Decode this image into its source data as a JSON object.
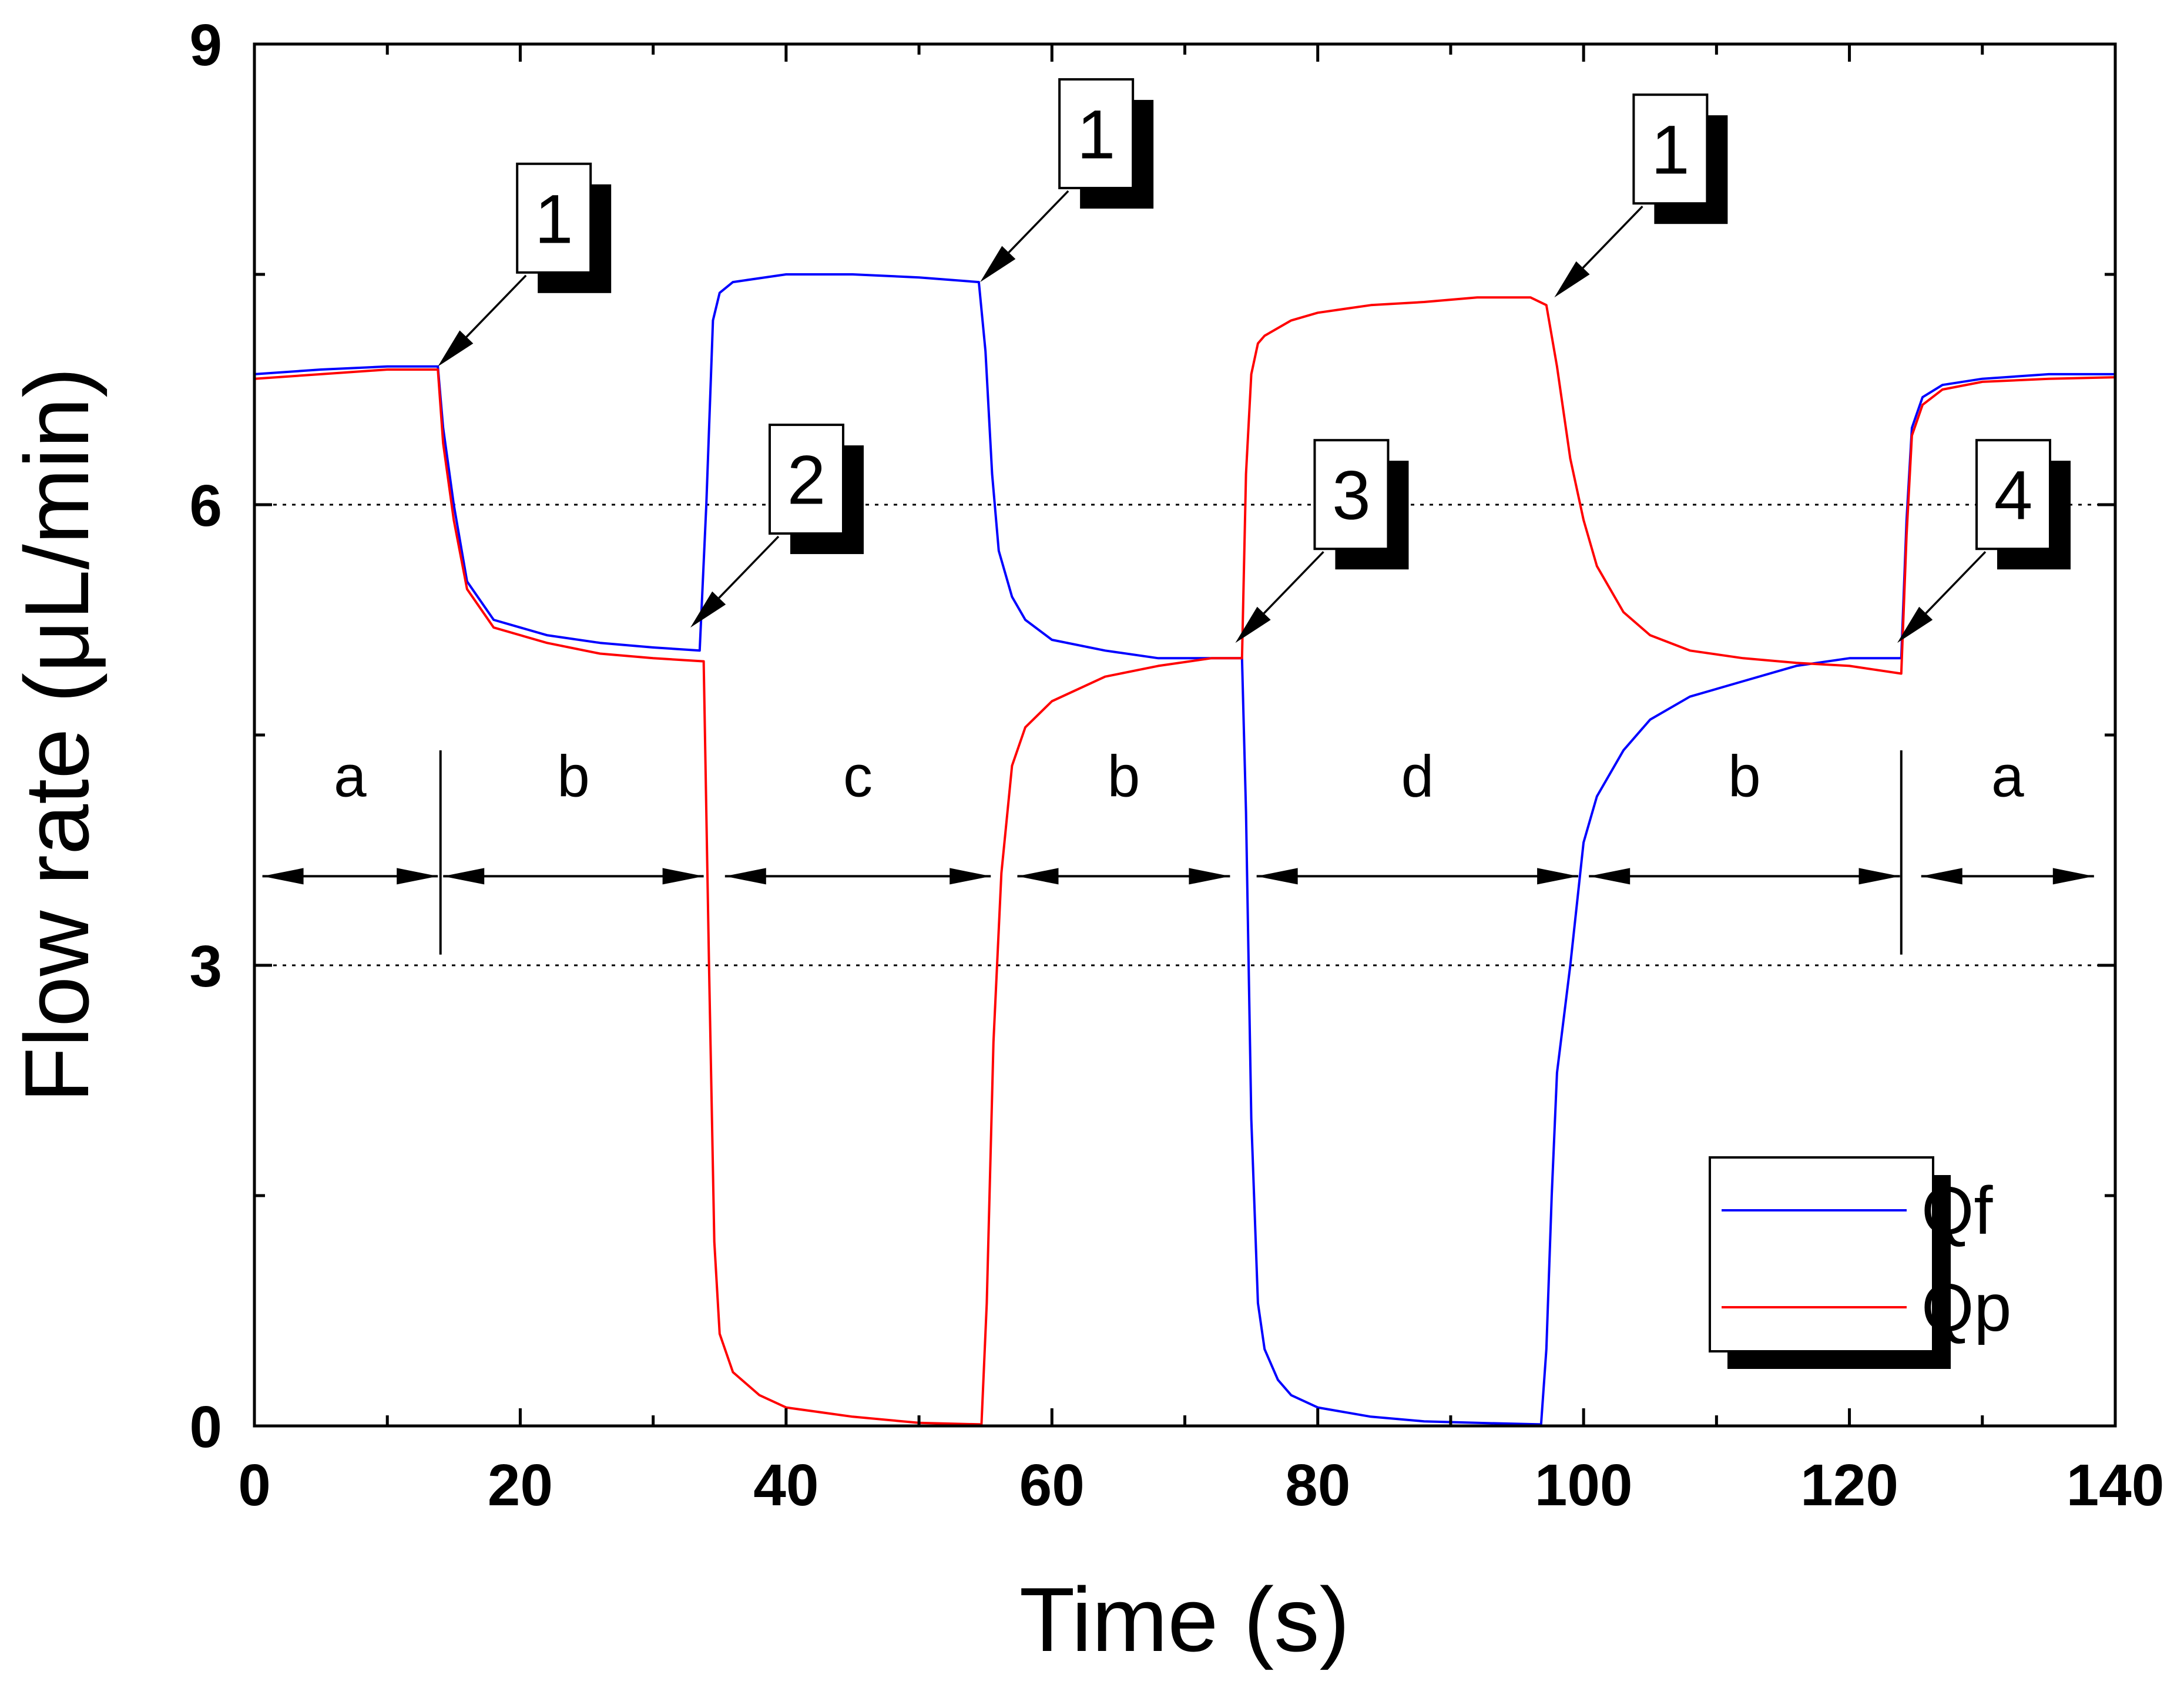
{
  "chart_data": {
    "type": "line",
    "title": "",
    "xlabel": "Time (s)",
    "ylabel": "Flow rate (μL/min)",
    "xlim": [
      0,
      140
    ],
    "ylim": [
      0,
      9
    ],
    "x_ticks": [
      0,
      20,
      40,
      60,
      80,
      100,
      120,
      140
    ],
    "y_ticks": [
      0,
      3,
      6,
      9
    ],
    "grid": "dotted horizontal lines at y=3 and y=6",
    "legend_position": "bottom-right",
    "series": [
      {
        "name": "Qf",
        "color": "#0000ff",
        "x": [
          0,
          5,
          10,
          13.8,
          14.2,
          15,
          16,
          18,
          22,
          26,
          30,
          33.5,
          34,
          34.5,
          35,
          36,
          40,
          45,
          50,
          54.5,
          55,
          55.5,
          56,
          57,
          58,
          60,
          64,
          68,
          72,
          74.3,
          74.6,
          75,
          75.5,
          76,
          77,
          78,
          80,
          84,
          88,
          92,
          96.8,
          97.2,
          97.6,
          98,
          99,
          100,
          101,
          103,
          105,
          108,
          112,
          116,
          120,
          123.9,
          124.3,
          124.7,
          125.5,
          127,
          130,
          135,
          140
        ],
        "y": [
          6.85,
          6.88,
          6.9,
          6.9,
          6.5,
          6.0,
          5.5,
          5.25,
          5.15,
          5.1,
          5.07,
          5.05,
          6.0,
          7.2,
          7.38,
          7.45,
          7.5,
          7.5,
          7.48,
          7.45,
          7.0,
          6.2,
          5.7,
          5.4,
          5.25,
          5.12,
          5.05,
          5.0,
          5.0,
          5.0,
          4.0,
          2.0,
          0.8,
          0.5,
          0.3,
          0.2,
          0.12,
          0.06,
          0.03,
          0.02,
          0.01,
          0.5,
          1.5,
          2.3,
          3.0,
          3.8,
          4.1,
          4.4,
          4.6,
          4.75,
          4.85,
          4.95,
          5.0,
          5.0,
          5.9,
          6.5,
          6.7,
          6.78,
          6.82,
          6.85,
          6.85
        ]
      },
      {
        "name": "Qp",
        "color": "#ff0000",
        "x": [
          0,
          5,
          10,
          13.8,
          14.2,
          15,
          16,
          18,
          22,
          26,
          30,
          33.8,
          34.2,
          34.6,
          35,
          36,
          38,
          40,
          45,
          50,
          54.7,
          55.1,
          55.6,
          56.2,
          57,
          58,
          60,
          64,
          68,
          72,
          74.3,
          74.6,
          75,
          75.5,
          76,
          78,
          80,
          84,
          88,
          92,
          96,
          97.2,
          98,
          99,
          100,
          101,
          103,
          105,
          108,
          112,
          116,
          120,
          123.9,
          124.3,
          124.7,
          125.5,
          127,
          130,
          135,
          140
        ],
        "y": [
          6.82,
          6.85,
          6.88,
          6.88,
          6.4,
          5.9,
          5.45,
          5.2,
          5.1,
          5.03,
          5.0,
          4.98,
          3.0,
          1.2,
          0.6,
          0.35,
          0.2,
          0.12,
          0.06,
          0.02,
          0.01,
          0.8,
          2.5,
          3.6,
          4.3,
          4.55,
          4.72,
          4.88,
          4.95,
          5.0,
          5.0,
          6.2,
          6.85,
          7.05,
          7.1,
          7.2,
          7.25,
          7.3,
          7.32,
          7.35,
          7.35,
          7.3,
          6.9,
          6.3,
          5.9,
          5.6,
          5.3,
          5.15,
          5.05,
          5.0,
          4.97,
          4.95,
          4.9,
          5.8,
          6.45,
          6.65,
          6.75,
          6.8,
          6.82,
          6.83
        ]
      }
    ],
    "segments": [
      {
        "label": "a",
        "x_start": 0.6,
        "x_end": 13.8
      },
      {
        "label": "b",
        "x_start": 14.2,
        "x_end": 33.8
      },
      {
        "label": "c",
        "x_start": 35.4,
        "x_end": 55.4
      },
      {
        "label": "b",
        "x_start": 57.4,
        "x_end": 73.4
      },
      {
        "label": "d",
        "x_start": 75.4,
        "x_end": 99.6
      },
      {
        "label": "b",
        "x_start": 100.4,
        "x_end": 123.8
      },
      {
        "label": "a",
        "x_start": 125.4,
        "x_end": 138.4
      }
    ],
    "segment_dividers_x": [
      14,
      123.9
    ],
    "callouts": [
      {
        "label": "1",
        "x": 13.8,
        "y": 6.9
      },
      {
        "label": "2",
        "x": 32.8,
        "y": 5.2
      },
      {
        "label": "1",
        "x": 54.6,
        "y": 7.45
      },
      {
        "label": "3",
        "x": 73.8,
        "y": 5.1
      },
      {
        "label": "1",
        "x": 97.8,
        "y": 7.35
      },
      {
        "label": "4",
        "x": 123.6,
        "y": 5.1
      }
    ]
  }
}
